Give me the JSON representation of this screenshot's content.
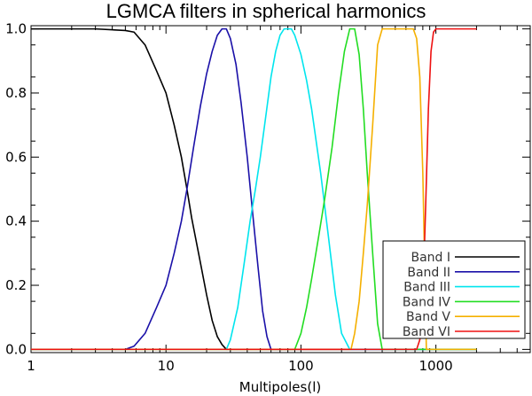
{
  "chart_data": {
    "type": "line",
    "title": "LGMCA filters in spherical harmonics",
    "xlabel": "Multipoles(l)",
    "ylabel": "",
    "xscale": "log",
    "xlim": [
      1,
      5000
    ],
    "ylim": [
      -0.01,
      1.01
    ],
    "grid": false,
    "legend_position": "bottom-right",
    "x_ticks": [
      1,
      10,
      100,
      1000
    ],
    "x_tick_labels": [
      "1",
      "10",
      "100",
      "1000"
    ],
    "y_ticks": [
      0.0,
      0.2,
      0.4,
      0.6,
      0.8,
      1.0
    ],
    "y_tick_labels": [
      "0.0",
      "0.2",
      "0.4",
      "0.6",
      "0.8",
      "1.0"
    ],
    "series": [
      {
        "name": "Band  I",
        "color": "#000000",
        "x": [
          1,
          3,
          5,
          5.8,
          7,
          8.5,
          10,
          11.5,
          13,
          14.3,
          15.5,
          18,
          20,
          22,
          24,
          26,
          28,
          2000
        ],
        "y": [
          1,
          1,
          0.995,
          0.99,
          0.95,
          0.87,
          0.8,
          0.7,
          0.6,
          0.5,
          0.41,
          0.27,
          0.17,
          0.09,
          0.04,
          0.015,
          0,
          0
        ]
      },
      {
        "name": "Band  II",
        "color": "#1a10a8",
        "x": [
          1,
          5,
          5.8,
          7,
          8.5,
          10,
          11.5,
          13,
          14.3,
          16,
          18,
          20,
          22,
          24,
          26,
          28,
          30,
          33,
          36,
          40,
          44,
          48,
          52,
          56,
          60,
          2000
        ],
        "y": [
          0,
          0,
          0.01,
          0.05,
          0.13,
          0.2,
          0.3,
          0.4,
          0.5,
          0.63,
          0.76,
          0.86,
          0.93,
          0.98,
          1.0,
          1.0,
          0.97,
          0.89,
          0.77,
          0.6,
          0.42,
          0.26,
          0.12,
          0.04,
          0,
          0
        ]
      },
      {
        "name": "Band  III",
        "color": "#00e5ee",
        "x": [
          1,
          28,
          30,
          34,
          38,
          42,
          46,
          50,
          55,
          60,
          65,
          70,
          75,
          80,
          85,
          90,
          100,
          110,
          120,
          140,
          160,
          180,
          200,
          230,
          2000
        ],
        "y": [
          0,
          0,
          0.03,
          0.13,
          0.27,
          0.4,
          0.5,
          0.6,
          0.73,
          0.85,
          0.93,
          0.98,
          1.0,
          1.0,
          1.0,
          0.98,
          0.92,
          0.84,
          0.75,
          0.55,
          0.35,
          0.17,
          0.05,
          0,
          0
        ]
      },
      {
        "name": "Band  IV",
        "color": "#22dd22",
        "x": [
          1,
          90,
          100,
          110,
          120,
          135,
          150,
          170,
          190,
          210,
          230,
          250,
          270,
          290,
          310,
          340,
          370,
          400,
          2000
        ],
        "y": [
          0,
          0,
          0.05,
          0.13,
          0.22,
          0.35,
          0.47,
          0.63,
          0.8,
          0.93,
          1.0,
          1.0,
          0.92,
          0.75,
          0.55,
          0.3,
          0.08,
          0,
          0
        ]
      },
      {
        "name": "Band  V",
        "color": "#f5b000",
        "x": [
          1,
          235,
          250,
          270,
          290,
          310,
          340,
          370,
          400,
          500,
          600,
          680,
          720,
          760,
          800,
          850,
          2000
        ],
        "y": [
          0,
          0,
          0.05,
          0.15,
          0.3,
          0.45,
          0.7,
          0.95,
          1.0,
          1.0,
          1.0,
          1.0,
          0.97,
          0.85,
          0.55,
          0.0,
          0
        ]
      },
      {
        "name": "Band  VI",
        "color": "#ee1111",
        "x": [
          1,
          720,
          760,
          800,
          840,
          880,
          920,
          960,
          1000,
          1500,
          2000
        ],
        "y": [
          0,
          0,
          0.03,
          0.15,
          0.45,
          0.75,
          0.93,
          0.99,
          1.0,
          1.0,
          1.0
        ]
      }
    ]
  }
}
